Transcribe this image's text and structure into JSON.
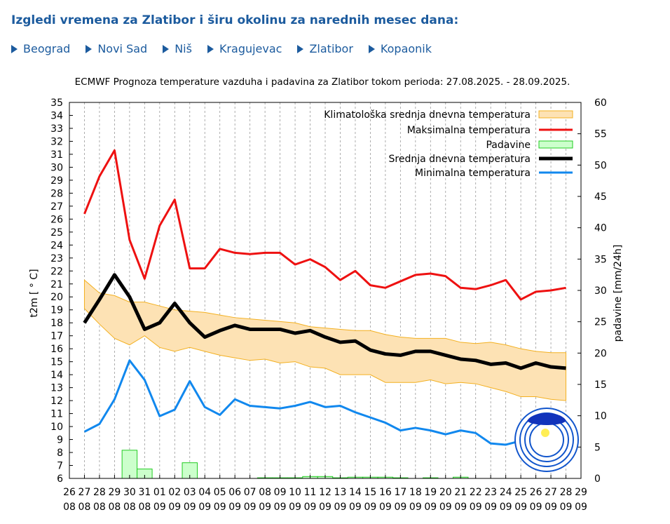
{
  "header": {
    "title": "Izgledi vremena za Zlatibor i širu okolinu za narednih mesec dana:"
  },
  "nav": {
    "links": [
      "Beograd",
      "Novi Sad",
      "Niš",
      "Kragujevac",
      "Zlatibor",
      "Kopaonik"
    ],
    "link_color": "#1c5b9e"
  },
  "chart_data": {
    "type": "line",
    "title": "ECMWF Prognoza temperature vazduha i padavina za Zlatibor tokom perioda: 27.08.2025. - 28.09.2025.",
    "ylabel": "t2m [ ° C]",
    "y2label": "padavine [mm/24h]",
    "ylim": [
      6,
      35
    ],
    "y2lim": [
      0,
      60
    ],
    "y2_ticks": [
      0,
      5,
      10,
      15,
      20,
      25,
      30,
      35,
      40,
      45,
      50,
      55,
      60
    ],
    "x_ticks": [
      {
        "day": "26",
        "month": "08"
      },
      {
        "day": "27",
        "month": "08"
      },
      {
        "day": "28",
        "month": "08"
      },
      {
        "day": "29",
        "month": "08"
      },
      {
        "day": "30",
        "month": "08"
      },
      {
        "day": "31",
        "month": "08"
      },
      {
        "day": "01",
        "month": "09"
      },
      {
        "day": "02",
        "month": "09"
      },
      {
        "day": "03",
        "month": "09"
      },
      {
        "day": "04",
        "month": "09"
      },
      {
        "day": "05",
        "month": "09"
      },
      {
        "day": "06",
        "month": "09"
      },
      {
        "day": "07",
        "month": "09"
      },
      {
        "day": "08",
        "month": "09"
      },
      {
        "day": "09",
        "month": "09"
      },
      {
        "day": "10",
        "month": "09"
      },
      {
        "day": "11",
        "month": "09"
      },
      {
        "day": "12",
        "month": "09"
      },
      {
        "day": "13",
        "month": "09"
      },
      {
        "day": "14",
        "month": "09"
      },
      {
        "day": "15",
        "month": "09"
      },
      {
        "day": "16",
        "month": "09"
      },
      {
        "day": "17",
        "month": "09"
      },
      {
        "day": "18",
        "month": "09"
      },
      {
        "day": "19",
        "month": "09"
      },
      {
        "day": "20",
        "month": "09"
      },
      {
        "day": "21",
        "month": "09"
      },
      {
        "day": "22",
        "month": "09"
      },
      {
        "day": "23",
        "month": "09"
      },
      {
        "day": "24",
        "month": "09"
      },
      {
        "day": "25",
        "month": "09"
      },
      {
        "day": "26",
        "month": "09"
      },
      {
        "day": "27",
        "month": "09"
      },
      {
        "day": "28",
        "month": "09"
      },
      {
        "day": "29",
        "month": "09"
      }
    ],
    "x": [
      "27.08",
      "28.08",
      "29.08",
      "30.08",
      "31.08",
      "01.09",
      "02.09",
      "03.09",
      "04.09",
      "05.09",
      "06.09",
      "07.09",
      "08.09",
      "09.09",
      "10.09",
      "11.09",
      "12.09",
      "13.09",
      "14.09",
      "15.09",
      "16.09",
      "17.09",
      "18.09",
      "19.09",
      "20.09",
      "21.09",
      "22.09",
      "23.09",
      "24.09",
      "25.09",
      "26.09",
      "27.09",
      "28.09"
    ],
    "legend": {
      "position": "top-right",
      "entries": [
        "Klimatološka srednja dnevna temperatura",
        "Maksimalna temperatura",
        "Padavine",
        "Srednja dnevna temperatura",
        "Minimalna temperatura"
      ]
    },
    "grid": true,
    "climatology_band": {
      "upper": [
        21.3,
        20.3,
        20.1,
        19.6,
        19.6,
        19.3,
        19.0,
        18.9,
        18.8,
        18.6,
        18.4,
        18.3,
        18.2,
        18.1,
        18.0,
        17.7,
        17.6,
        17.5,
        17.4,
        17.4,
        17.1,
        16.9,
        16.8,
        16.8,
        16.8,
        16.5,
        16.4,
        16.5,
        16.3,
        16.0,
        15.8,
        15.7,
        15.7
      ],
      "lower": [
        19.1,
        17.9,
        16.8,
        16.3,
        17.0,
        16.1,
        15.8,
        16.1,
        15.8,
        15.5,
        15.3,
        15.1,
        15.2,
        14.9,
        15.0,
        14.6,
        14.5,
        14.0,
        14.0,
        14.0,
        13.4,
        13.4,
        13.4,
        13.6,
        13.3,
        13.4,
        13.3,
        13.0,
        12.7,
        12.3,
        12.3,
        12.1,
        12.0
      ]
    },
    "series": [
      {
        "name": "Maksimalna temperatura",
        "color": "#ee1111",
        "values": [
          26.4,
          29.3,
          31.3,
          24.4,
          21.4,
          25.5,
          27.5,
          22.2,
          22.2,
          23.7,
          23.4,
          23.3,
          23.4,
          23.4,
          22.5,
          22.9,
          22.3,
          21.3,
          22.0,
          20.9,
          20.7,
          21.2,
          21.7,
          21.8,
          21.6,
          20.7,
          20.6,
          20.9,
          21.3,
          19.8,
          20.4,
          20.5,
          20.7
        ]
      },
      {
        "name": "Srednja dnevna temperatura",
        "color": "#000000",
        "values": [
          18.0,
          19.8,
          21.7,
          20.0,
          17.5,
          18.0,
          19.5,
          18.0,
          16.9,
          17.4,
          17.8,
          17.5,
          17.5,
          17.5,
          17.2,
          17.4,
          16.9,
          16.5,
          16.6,
          15.9,
          15.6,
          15.5,
          15.8,
          15.8,
          15.5,
          15.2,
          15.1,
          14.8,
          14.9,
          14.5,
          14.9,
          14.6,
          14.5
        ]
      },
      {
        "name": "Minimalna temperatura",
        "color": "#1188ee",
        "values": [
          9.6,
          10.2,
          12.1,
          15.1,
          13.6,
          10.8,
          11.3,
          13.5,
          11.5,
          10.9,
          12.1,
          11.6,
          11.5,
          11.4,
          11.6,
          11.9,
          11.5,
          11.6,
          11.1,
          10.7,
          10.3,
          9.7,
          9.9,
          9.7,
          9.4,
          9.7,
          9.5,
          8.7,
          8.6,
          8.9,
          9.3,
          8.8,
          8.7
        ]
      }
    ],
    "precipitation": {
      "name": "Padavine",
      "color": "#99ee99",
      "values": [
        0,
        0,
        0,
        4.5,
        1.5,
        0,
        0,
        2.5,
        0,
        0,
        0,
        0,
        0.1,
        0.1,
        0.1,
        0.3,
        0.3,
        0.1,
        0.2,
        0.2,
        0.2,
        0.1,
        0,
        0.1,
        0,
        0.2,
        0,
        0,
        0,
        0,
        0,
        0,
        0
      ]
    }
  }
}
